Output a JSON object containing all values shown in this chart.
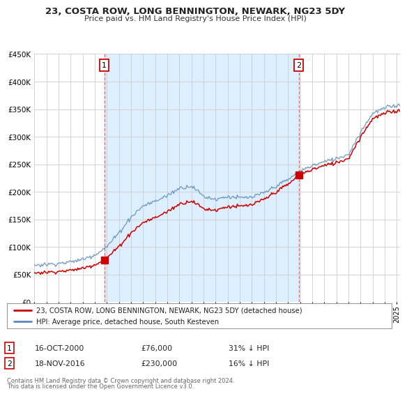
{
  "title": "23, COSTA ROW, LONG BENNINGTON, NEWARK, NG23 5DY",
  "subtitle": "Price paid vs. HM Land Registry's House Price Index (HPI)",
  "legend_line1": "23, COSTA ROW, LONG BENNINGTON, NEWARK, NG23 5DY (detached house)",
  "legend_line2": "HPI: Average price, detached house, South Kesteven",
  "sale1_date": "16-OCT-2000",
  "sale1_price": "£76,000",
  "sale1_hpi": "31% ↓ HPI",
  "sale1_year": 2000.79,
  "sale1_value": 76000,
  "sale2_date": "18-NOV-2016",
  "sale2_price": "£230,000",
  "sale2_hpi": "16% ↓ HPI",
  "sale2_year": 2016.88,
  "sale2_value": 230000,
  "footer1": "Contains HM Land Registry data © Crown copyright and database right 2024.",
  "footer2": "This data is licensed under the Open Government Licence v3.0.",
  "red_color": "#cc0000",
  "blue_color": "#5588bb",
  "shade_color": "#ddeeff",
  "vline_color": "#dd4444",
  "background_color": "#ffffff",
  "grid_color": "#cccccc",
  "ylim": [
    0,
    450000
  ],
  "xlim_start": 1995.0,
  "xlim_end": 2025.3
}
